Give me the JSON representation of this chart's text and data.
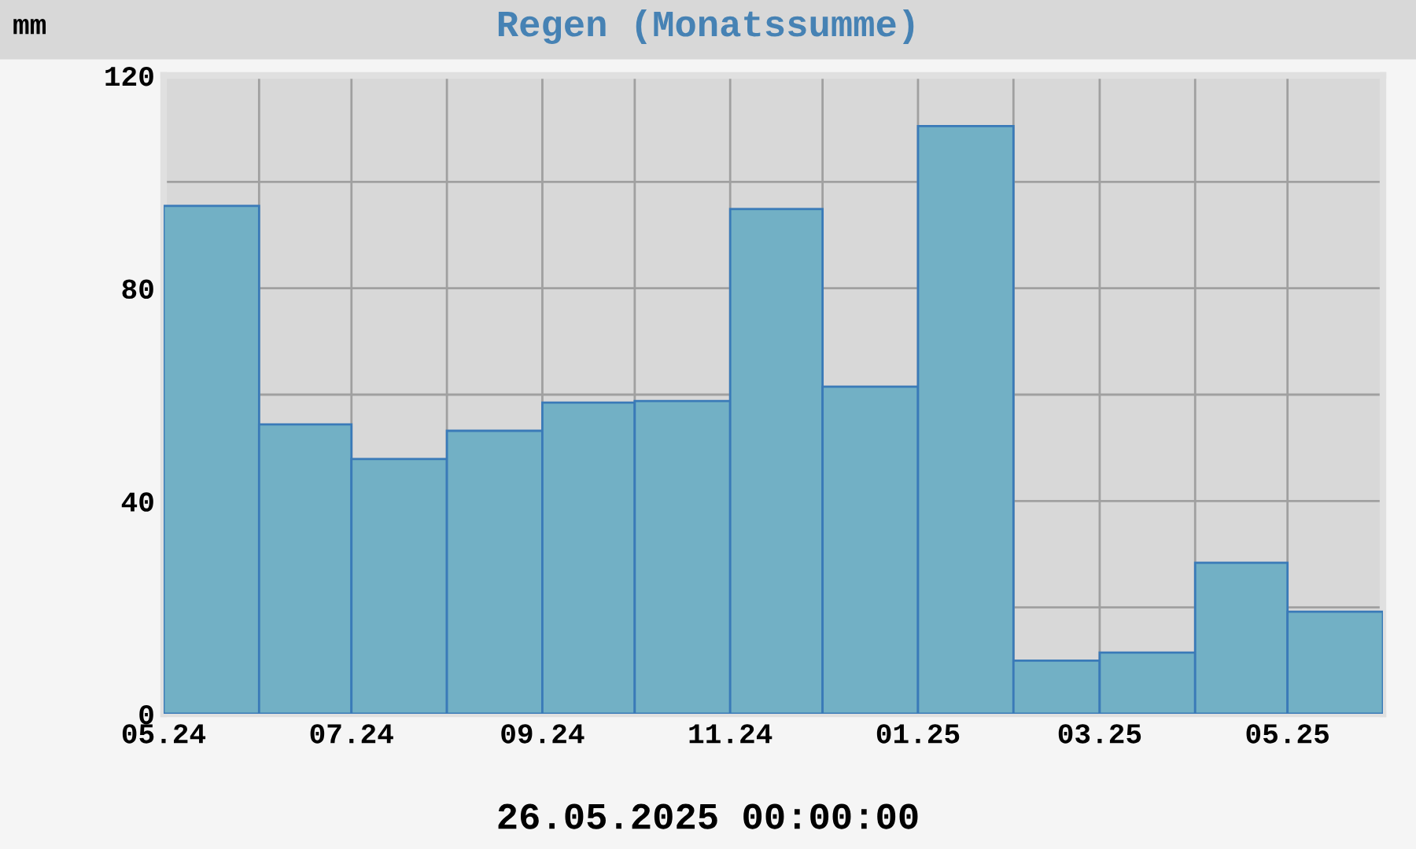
{
  "chart_data": {
    "type": "histogram",
    "title": "Regen (Monatssumme)",
    "ylabel": "mm",
    "bins": [
      "2024-05",
      "2024-06",
      "2024-07",
      "2024-08",
      "2024-09",
      "2024-10",
      "2024-11",
      "2024-12",
      "2025-01",
      "2025-02",
      "2025-03",
      "2025-04",
      "2025-05",
      "2025-06"
    ],
    "values": [
      95.5,
      54.4,
      47.9,
      53.2,
      58.5,
      58.8,
      94.9,
      61.5,
      110.5,
      10.0,
      11.5,
      28.4,
      19.2
    ],
    "color": "#72b0c5",
    "xlim": [
      "2024-05",
      "2025-06"
    ],
    "xticks": [
      {
        "value": "2024-05",
        "label": "05.24"
      },
      {
        "value": "2024-06",
        "label": null
      },
      {
        "value": "2024-07",
        "label": "07.24"
      },
      {
        "value": "2024-08",
        "label": null
      },
      {
        "value": "2024-09",
        "label": "09.24"
      },
      {
        "value": "2024-10",
        "label": null
      },
      {
        "value": "2024-11",
        "label": "11.24"
      },
      {
        "value": "2024-12",
        "label": null
      },
      {
        "value": "2025-01",
        "label": "01.25"
      },
      {
        "value": "2025-02",
        "label": null
      },
      {
        "value": "2025-03",
        "label": "03.25"
      },
      {
        "value": "2025-04",
        "label": null
      },
      {
        "value": "2025-05",
        "label": "05.25"
      },
      {
        "value": "2025-06",
        "label": null
      }
    ],
    "ylim": [
      0,
      120
    ],
    "yticks": [
      0,
      {
        "value": 20,
        "label": null
      },
      40,
      {
        "value": 60,
        "label": null
      },
      80,
      {
        "value": 100,
        "label": null
      },
      120
    ],
    "grid": true,
    "annotations": [
      "26.05.2025 00:00:00"
    ]
  }
}
